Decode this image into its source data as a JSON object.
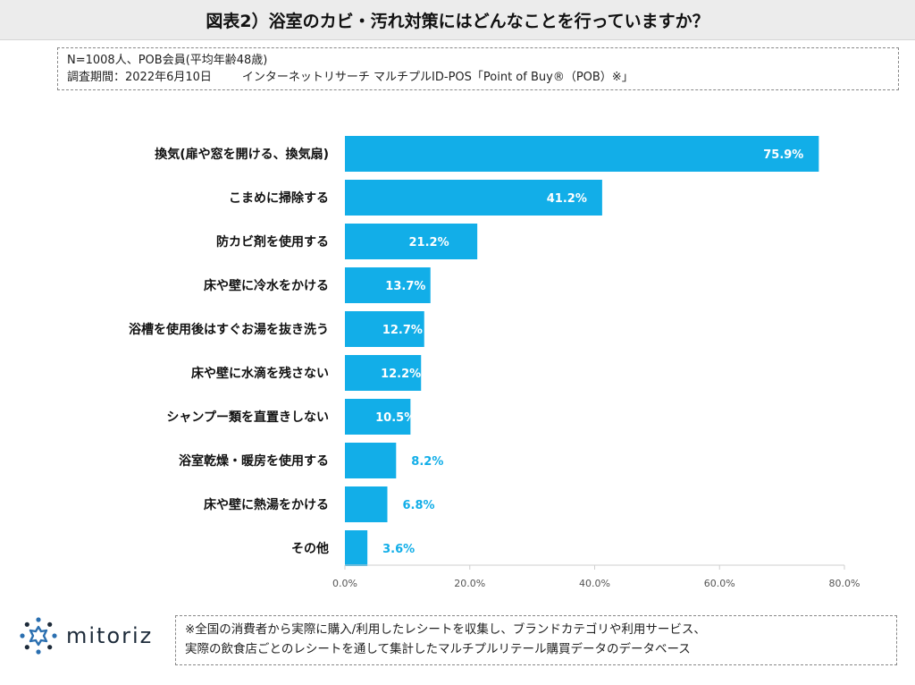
{
  "title": "図表2）浴室のカビ・汚れ対策にはどんなことを行っていますか？",
  "info": {
    "line1": "N=1008人、POB会員(平均年齢48歳)",
    "line2_a": "調査期間：2022年6月10日",
    "line2_b": "インターネットリサーチ マルチプルID-POS「Point of Buy®（POB）※」"
  },
  "logo": {
    "text": "mitoriz",
    "icon": "sun-burst-icon"
  },
  "note": {
    "line1": "※全国の消費者から実際に購入/利用したレシートを収集し、ブランドカテゴリや利用サービス、",
    "line2": "実際の飲食店ごとのレシートを通して集計したマルチプルリテール購買データのデータベース"
  },
  "colors": {
    "bar": "#12aee8",
    "label_inside": "#ffffff",
    "label_outside": "#12aee8"
  },
  "chart_data": {
    "type": "bar",
    "orientation": "horizontal",
    "categories": [
      "換気(扉や窓を開ける、換気扇)",
      "こまめに掃除する",
      "防カビ剤を使用する",
      "床や壁に冷水をかける",
      "浴槽を使用後はすぐお湯を抜き洗う",
      "床や壁に水滴を残さない",
      "シャンプー類を直置きしない",
      "浴室乾燥・暖房を使用する",
      "床や壁に熱湯をかける",
      "その他"
    ],
    "values": [
      75.9,
      41.2,
      21.2,
      13.7,
      12.7,
      12.2,
      10.5,
      8.2,
      6.8,
      3.6
    ],
    "value_labels": [
      "75.9%",
      "41.2%",
      "21.2%",
      "13.7%",
      "12.7%",
      "12.2%",
      "10.5%",
      "8.2%",
      "6.8%",
      "3.6%"
    ],
    "xlim": [
      0,
      80
    ],
    "xticks": [
      0,
      20,
      40,
      60,
      80
    ],
    "xtick_labels": [
      "0.0%",
      "20.0%",
      "40.0%",
      "60.0%",
      "80.0%"
    ],
    "grid": false
  }
}
